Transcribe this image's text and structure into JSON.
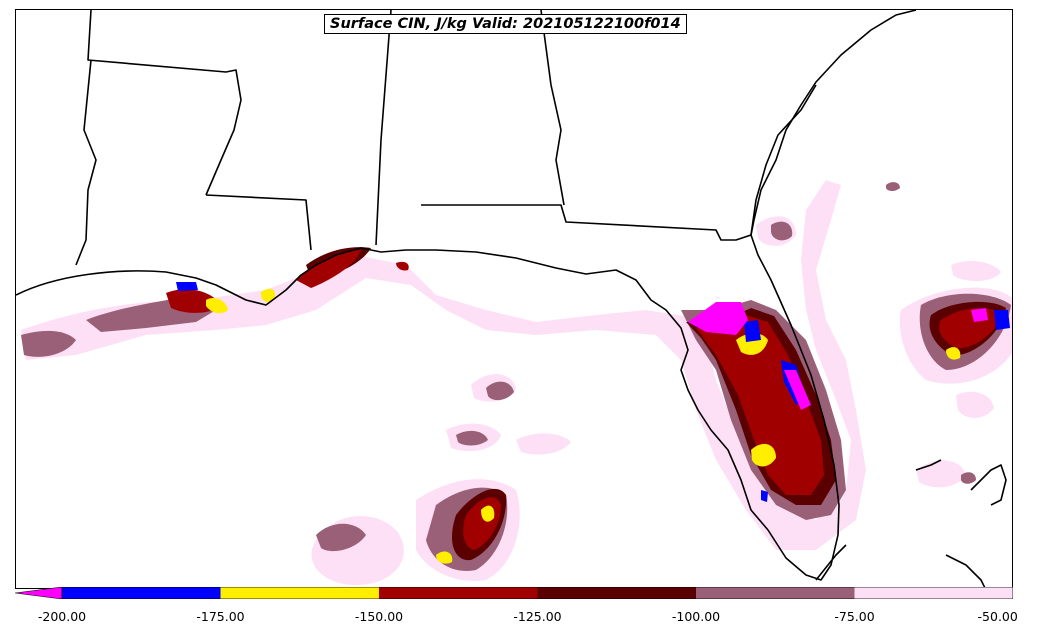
{
  "title": "Surface CIN, J/kg Valid: 202105122100f014",
  "colors": {
    "extend_below": "#ff00ff",
    "bins": [
      "#0000ff",
      "#ffee00",
      "#a00000",
      "#5a0000",
      "#9a6078",
      "#fde0f5"
    ],
    "land_boundary": "#000000",
    "background": "#ffffff"
  },
  "colorbar": {
    "ticks": [
      "-200.00",
      "-175.00",
      "-150.00",
      "-125.00",
      "-100.00",
      "-75.00",
      "-50.00"
    ],
    "extend": "min"
  },
  "legend": [
    {
      "range": "< -200",
      "color": "#ff00ff"
    },
    {
      "range": "-200 to -175",
      "color": "#0000ff"
    },
    {
      "range": "-175 to -150",
      "color": "#ffee00"
    },
    {
      "range": "-150 to -125",
      "color": "#a00000"
    },
    {
      "range": "-125 to -100",
      "color": "#5a0000"
    },
    {
      "range": "-100 to -75",
      "color": "#9a6078"
    },
    {
      "range": "-75 to -50",
      "color": "#fde0f5"
    }
  ]
}
